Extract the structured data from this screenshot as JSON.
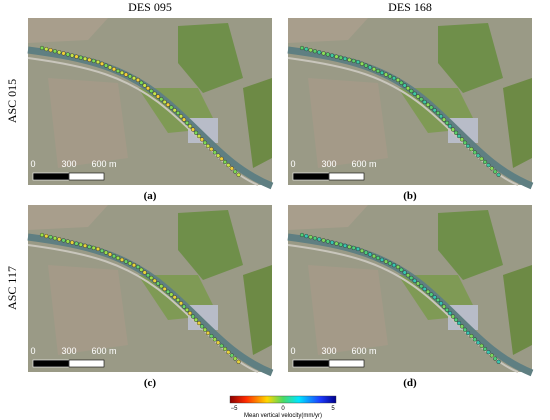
{
  "columns": [
    "DES 095",
    "DES 168"
  ],
  "rows": [
    "ASC 015",
    "ASC 117"
  ],
  "panels": [
    {
      "label": "(a)"
    },
    {
      "label": "(b)"
    },
    {
      "label": "(c)"
    },
    {
      "label": "(d)"
    }
  ],
  "scale_bar": {
    "labels": [
      "0",
      "300",
      "600 m"
    ]
  },
  "colorbar": {
    "ticks": [
      "−5",
      "0",
      "5"
    ],
    "label": "Mean vertical velocity(mm/yr)"
  }
}
